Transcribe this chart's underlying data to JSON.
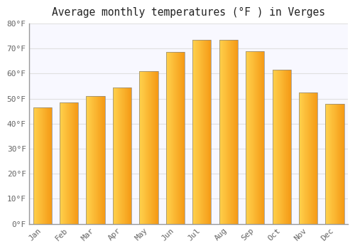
{
  "title": "Average monthly temperatures (°F ) in Verges",
  "months": [
    "Jan",
    "Feb",
    "Mar",
    "Apr",
    "May",
    "Jun",
    "Jul",
    "Aug",
    "Sep",
    "Oct",
    "Nov",
    "Dec"
  ],
  "values": [
    46.5,
    48.5,
    51.0,
    54.5,
    61.0,
    68.5,
    73.5,
    73.5,
    69.0,
    61.5,
    52.5,
    48.0
  ],
  "bar_color_left": "#FFD060",
  "bar_color_right": "#F5A020",
  "bar_edge_color": "#888888",
  "background_color": "#FFFFFF",
  "plot_bg_color": "#F8F8FF",
  "grid_color": "#E0E0E0",
  "ylim": [
    0,
    80
  ],
  "yticks": [
    0,
    10,
    20,
    30,
    40,
    50,
    60,
    70,
    80
  ],
  "ytick_labels": [
    "0°F",
    "10°F",
    "20°F",
    "30°F",
    "40°F",
    "50°F",
    "60°F",
    "70°F",
    "80°F"
  ],
  "title_fontsize": 10.5,
  "tick_fontsize": 8,
  "tick_color": "#666666"
}
